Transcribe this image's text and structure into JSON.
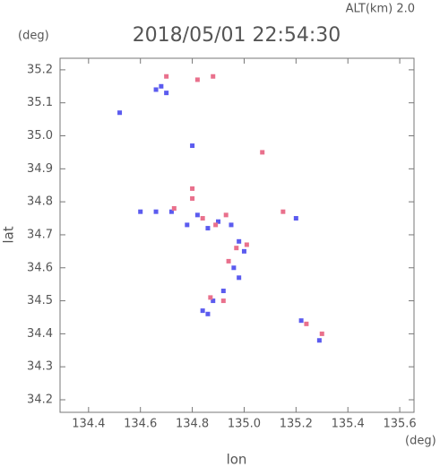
{
  "chart_data": {
    "type": "scatter",
    "title": "2018/05/01 22:54:30",
    "subtitle": "ALT(km) 2.0",
    "x_label": "lon",
    "x_unit": "(deg)",
    "y_label": "lat",
    "y_unit": "(deg)",
    "xlim": [
      134.29,
      135.655
    ],
    "ylim": [
      34.162,
      35.235
    ],
    "xticks": [
      134.4,
      134.6,
      134.8,
      {
        "value": 135,
        "label": "135.0"
      },
      135.2,
      135.4,
      135.6
    ],
    "yticks": [
      34.2,
      34.3,
      34.4,
      34.5,
      34.6,
      34.7,
      34.8,
      34.9,
      {
        "value": 35,
        "label": "35.0"
      },
      35.1,
      35.2
    ],
    "series": [
      {
        "color": "#5b5bef",
        "x": [
          134.52,
          134.66,
          134.68,
          134.7,
          134.8,
          134.6,
          134.66,
          134.72,
          134.78,
          134.82,
          134.86,
          134.9,
          134.95,
          134.98,
          135.0,
          134.96,
          134.98,
          134.92,
          134.88,
          134.84,
          134.86,
          135.2,
          135.22,
          135.29
        ],
        "values": [
          35.07,
          35.14,
          35.15,
          35.13,
          34.97,
          34.77,
          34.77,
          34.77,
          34.73,
          34.76,
          34.72,
          34.74,
          34.73,
          34.68,
          34.65,
          34.6,
          34.57,
          34.53,
          34.5,
          34.47,
          34.46,
          34.75,
          34.44,
          34.38
        ]
      },
      {
        "color": "#e9708c",
        "x": [
          134.7,
          134.82,
          134.88,
          134.73,
          134.8,
          134.8,
          134.84,
          134.89,
          134.93,
          134.97,
          135.01,
          134.94,
          134.87,
          134.92,
          135.07,
          135.15,
          135.24,
          135.3
        ],
        "values": [
          35.18,
          35.17,
          35.18,
          34.78,
          34.84,
          34.81,
          34.75,
          34.73,
          34.76,
          34.66,
          34.67,
          34.62,
          34.51,
          34.5,
          34.95,
          34.77,
          34.43,
          34.4
        ]
      }
    ]
  }
}
